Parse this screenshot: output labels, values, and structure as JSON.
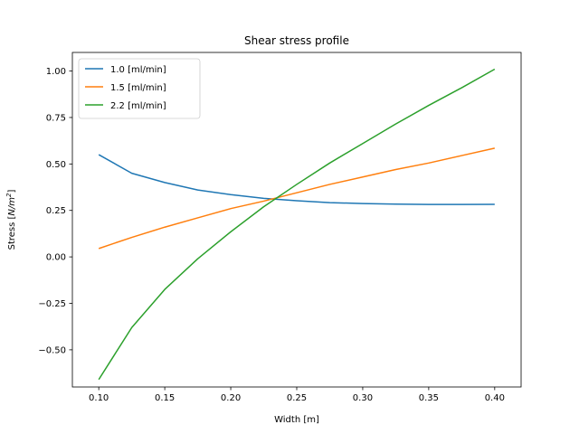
{
  "chart_data": {
    "type": "line",
    "title": "Shear stress profile",
    "xlabel": "Width [m]",
    "ylabel_prefix": "Stress [",
    "ylabel_unit": "N/m",
    "ylabel_exp": "2",
    "ylabel_suffix": "]",
    "xlim": [
      0.08,
      0.42
    ],
    "ylim": [
      -0.7,
      1.1
    ],
    "xticks": [
      0.1,
      0.15,
      0.2,
      0.25,
      0.3,
      0.35,
      0.4
    ],
    "xtick_labels": [
      "0.10",
      "0.15",
      "0.20",
      "0.25",
      "0.30",
      "0.35",
      "0.40"
    ],
    "yticks": [
      -0.5,
      -0.25,
      0.0,
      0.25,
      0.5,
      0.75,
      1.0
    ],
    "ytick_labels": [
      "−0.50",
      "−0.25",
      "0.00",
      "0.25",
      "0.50",
      "0.75",
      "1.00"
    ],
    "grid": false,
    "legend_position": "top-left",
    "x": [
      0.1,
      0.125,
      0.15,
      0.175,
      0.2,
      0.225,
      0.25,
      0.275,
      0.3,
      0.325,
      0.35,
      0.375,
      0.4
    ],
    "series": [
      {
        "name": "1.0 [ml/min]",
        "color": "#1f77b4",
        "values": [
          0.55,
          0.45,
          0.4,
          0.36,
          0.335,
          0.315,
          0.302,
          0.292,
          0.287,
          0.284,
          0.282,
          0.282,
          0.283
        ]
      },
      {
        "name": "1.5 [ml/min]",
        "color": "#ff7f0e",
        "values": [
          0.045,
          0.105,
          0.16,
          0.21,
          0.26,
          0.3,
          0.345,
          0.39,
          0.43,
          0.47,
          0.505,
          0.545,
          0.585
        ]
      },
      {
        "name": "2.2 [ml/min]",
        "color": "#2ca02c",
        "values": [
          -0.66,
          -0.38,
          -0.175,
          -0.01,
          0.135,
          0.27,
          0.39,
          0.505,
          0.61,
          0.715,
          0.815,
          0.91,
          1.01
        ]
      }
    ]
  }
}
